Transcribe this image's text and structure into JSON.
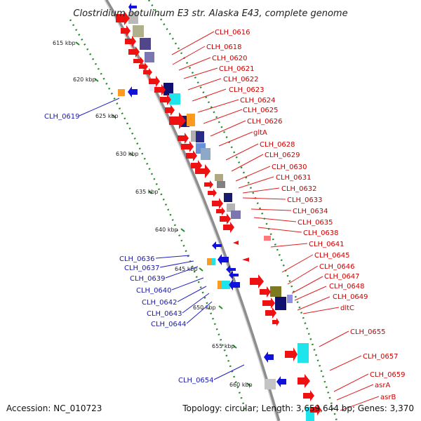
{
  "title": "Clostridium botulinum E3 str. Alaska E43, complete genome",
  "footer": {
    "accession": "Accession: NC_010723",
    "summary": "Topology: circular; Length: 3,659,644 bp; Genes: 3,370"
  },
  "scale_labels": [
    "615 kbp",
    "620 kbp",
    "625 kbp",
    "630 kbp",
    "635 kbp",
    "640 kbp",
    "645 kbp",
    "650 kbp",
    "655 kbp",
    "660 kbp"
  ],
  "forward_labels": [
    "CLH_0616",
    "CLH_0618",
    "CLH_0620",
    "CLH_0621",
    "CLH_0622",
    "CLH_0623",
    "CLH_0624",
    "CLH_0625",
    "CLH_0626",
    "gltA",
    "CLH_0628",
    "CLH_0629",
    "CLH_0630",
    "CLH_0631",
    "CLH_0632",
    "CLH_0633",
    "CLH_0634",
    "CLH_0635",
    "CLH_0638",
    "CLH_0641",
    "CLH_0645",
    "CLH_0646",
    "CLH_0647",
    "CLH_0648",
    "CLH_0649",
    "dltC",
    "CLH_0655",
    "CLH_0657",
    "CLH_0659",
    "asrA",
    "asrB"
  ],
  "reverse_labels": [
    "CLH_0619",
    "CLH_0636",
    "CLH_0637",
    "CLH_0639",
    "CLH_0640",
    "CLH_0642",
    "CLH_0643",
    "CLH_0644",
    "CLH_0654"
  ],
  "colors": {
    "forward_gene": "#ee1111",
    "reverse_gene": "#1111dd",
    "forward_label": "#cc0000",
    "reverse_label": "#1a1aa6",
    "backbone": "#999999",
    "scale_dots": "#228822"
  }
}
